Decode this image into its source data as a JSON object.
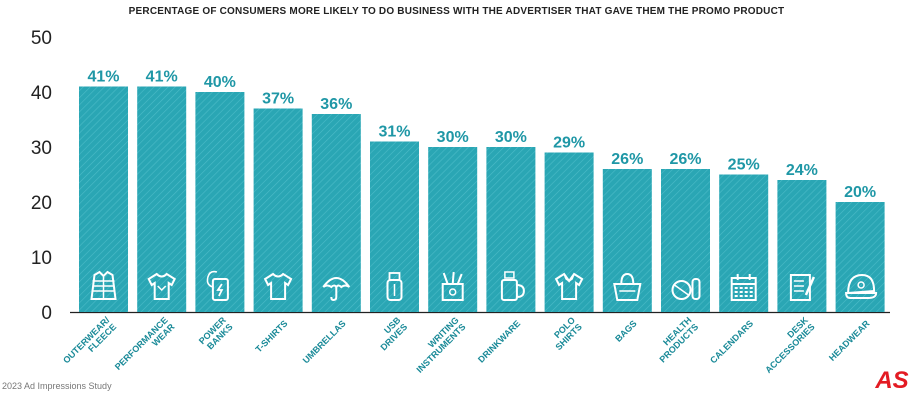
{
  "chart_data": {
    "type": "bar",
    "title": "PERCENTAGE OF CONSUMERS MORE LIKELY TO DO BUSINESS WITH THE ADVERTISER THAT GAVE THEM THE PROMO PRODUCT",
    "xlabel": "",
    "ylabel": "",
    "ylim": [
      0,
      50
    ],
    "yticks": [
      "0",
      "10",
      "20",
      "30",
      "40",
      "50"
    ],
    "categories": [
      "OUTERWEAR/ FLEECE",
      "PERFORMANCE WEAR",
      "POWER BANKS",
      "T-SHIRTS",
      "UMBRELLAS",
      "USB DRIVES",
      "WRITING INSTRUMENTS",
      "DRINKWARE",
      "POLO SHIRTS",
      "BAGS",
      "HEALTH PRODUCTS",
      "CALENDARS",
      "DESK ACCESSORIES",
      "HEADWEAR"
    ],
    "values": [
      41,
      41,
      40,
      37,
      36,
      31,
      30,
      30,
      29,
      26,
      26,
      25,
      24,
      20
    ],
    "data_labels": [
      "41%",
      "41%",
      "40%",
      "37%",
      "36%",
      "31%",
      "30%",
      "30%",
      "29%",
      "26%",
      "26%",
      "25%",
      "24%",
      "20%"
    ],
    "icons": [
      "jacket-icon",
      "performance-shirt-icon",
      "power-bank-icon",
      "t-shirt-icon",
      "umbrella-icon",
      "usb-drive-icon",
      "pen-cup-icon",
      "mug-icon",
      "polo-shirt-icon",
      "bag-icon",
      "health-products-icon",
      "calendar-icon",
      "notepad-icon",
      "cap-icon"
    ],
    "grid": false,
    "legend": "none",
    "colors": {
      "bar": "#2aa6b4",
      "label": "#1f97a6",
      "axis": "#222222",
      "icon": "#ffffff"
    }
  },
  "footer": {
    "source": "2023 Ad Impressions Study",
    "logo_text": "AS"
  },
  "colors": {
    "logo": "#e31b23"
  }
}
